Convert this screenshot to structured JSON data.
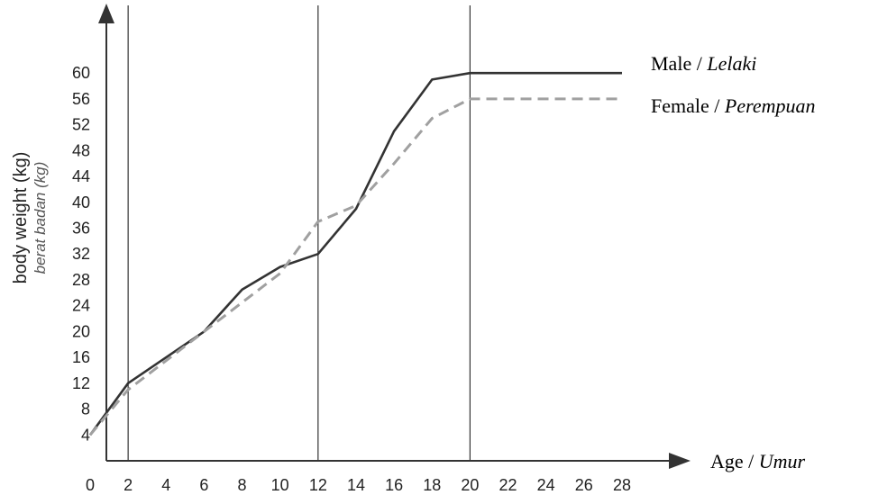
{
  "chart_data": {
    "type": "line",
    "xlabel": "Age",
    "xlabel_translation": "Umur",
    "ylabel": "body weight (kg)",
    "ylabel_translation": "berat badan (kg)",
    "x_ticks": [
      0,
      2,
      4,
      6,
      8,
      10,
      12,
      14,
      16,
      18,
      20,
      22,
      24,
      26,
      28
    ],
    "y_ticks": [
      4,
      8,
      12,
      16,
      20,
      24,
      28,
      32,
      36,
      40,
      44,
      48,
      52,
      56,
      60
    ],
    "xlim": [
      0,
      28
    ],
    "ylim": [
      0,
      60
    ],
    "vertical_lines": [
      2,
      12,
      20
    ],
    "grid": false,
    "legend_position": "right",
    "series": [
      {
        "name": "Male",
        "name_translation": "Lelaki",
        "style": "solid",
        "color": "#333333",
        "x": [
          0,
          2,
          4,
          6,
          8,
          10,
          12,
          14,
          16,
          18,
          20,
          28
        ],
        "y": [
          4,
          12,
          16,
          20,
          26.5,
          30,
          32,
          39,
          51,
          59,
          60,
          60
        ]
      },
      {
        "name": "Female",
        "name_translation": "Perempuan",
        "style": "dashed",
        "color": "#a0a0a0",
        "x": [
          0,
          2,
          4,
          6,
          8,
          10,
          12,
          14,
          16,
          18,
          20,
          28
        ],
        "y": [
          4,
          11,
          15.5,
          20,
          24.5,
          29,
          37,
          39.5,
          46,
          53,
          56,
          56
        ]
      }
    ]
  }
}
